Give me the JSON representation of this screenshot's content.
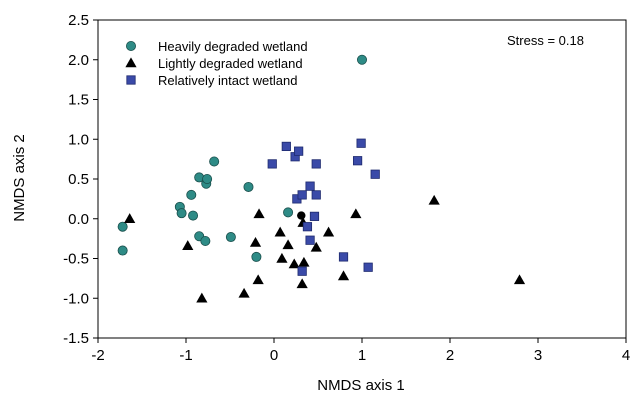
{
  "chart_data": {
    "type": "scatter",
    "xlabel": "NMDS axis 1",
    "ylabel": "NMDS axis 2",
    "xlim": [
      -2,
      4
    ],
    "ylim": [
      -1.5,
      2.5
    ],
    "xticks": [
      "-2",
      "-1",
      "0",
      "1",
      "2",
      "3",
      "4"
    ],
    "yticks": [
      "-1.5",
      "-1.0",
      "-0.5",
      "0.0",
      "0.5",
      "1.0",
      "1.5",
      "2.0",
      "2.5"
    ],
    "xtick_values": [
      -2,
      -1,
      0,
      1,
      2,
      3,
      4
    ],
    "ytick_values": [
      -1.5,
      -1.0,
      -0.5,
      0.0,
      0.5,
      1.0,
      1.5,
      2.0,
      2.5
    ],
    "grid": false,
    "legend_position": "top-left",
    "annotation": "Stress = 0.18",
    "series": [
      {
        "name": "Heavily degraded wetland",
        "marker": "circle",
        "color": "#2e8b86",
        "points": [
          [
            -1.72,
            -0.1
          ],
          [
            -1.72,
            -0.4
          ],
          [
            -1.07,
            0.15
          ],
          [
            -1.05,
            0.07
          ],
          [
            -0.92,
            0.04
          ],
          [
            -0.94,
            0.3
          ],
          [
            -0.85,
            -0.22
          ],
          [
            -0.85,
            0.52
          ],
          [
            -0.77,
            0.44
          ],
          [
            -0.76,
            0.5
          ],
          [
            -0.68,
            0.72
          ],
          [
            -0.78,
            -0.28
          ],
          [
            -0.49,
            -0.23
          ],
          [
            -0.29,
            0.4
          ],
          [
            -0.2,
            -0.48
          ],
          [
            0.16,
            0.08
          ],
          [
            1.0,
            2.0
          ]
        ]
      },
      {
        "name": "Lightly degraded wetland",
        "marker": "triangle",
        "color": "#000000",
        "points": [
          [
            -1.64,
            0.0
          ],
          [
            -0.98,
            -0.34
          ],
          [
            -0.82,
            -1.0
          ],
          [
            -0.34,
            -0.94
          ],
          [
            -0.21,
            -0.3
          ],
          [
            -0.17,
            0.06
          ],
          [
            -0.18,
            -0.77
          ],
          [
            0.07,
            -0.17
          ],
          [
            0.09,
            -0.5
          ],
          [
            0.16,
            -0.33
          ],
          [
            0.23,
            -0.57
          ],
          [
            0.33,
            -0.05
          ],
          [
            0.32,
            -0.82
          ],
          [
            0.34,
            -0.55
          ],
          [
            0.48,
            -0.36
          ],
          [
            0.62,
            -0.17
          ],
          [
            0.79,
            -0.72
          ],
          [
            0.93,
            0.06
          ],
          [
            1.82,
            0.23
          ],
          [
            2.79,
            -0.77
          ]
        ]
      },
      {
        "name": "Relatively intact wetland",
        "marker": "square",
        "color": "#3a4aa8",
        "points": [
          [
            -0.02,
            0.69
          ],
          [
            0.14,
            0.91
          ],
          [
            0.24,
            0.78
          ],
          [
            0.28,
            0.85
          ],
          [
            0.48,
            0.69
          ],
          [
            0.26,
            0.25
          ],
          [
            0.32,
            0.3
          ],
          [
            0.41,
            0.41
          ],
          [
            0.48,
            0.3
          ],
          [
            0.46,
            0.03
          ],
          [
            0.38,
            -0.1
          ],
          [
            0.41,
            -0.27
          ],
          [
            0.32,
            -0.66
          ],
          [
            0.79,
            -0.48
          ],
          [
            0.95,
            0.73
          ],
          [
            0.99,
            0.95
          ],
          [
            1.15,
            0.56
          ],
          [
            1.07,
            -0.61
          ]
        ]
      },
      {
        "name": "",
        "marker": "dot",
        "color": "#000000",
        "points": [
          [
            0.31,
            0.04
          ]
        ]
      }
    ]
  }
}
